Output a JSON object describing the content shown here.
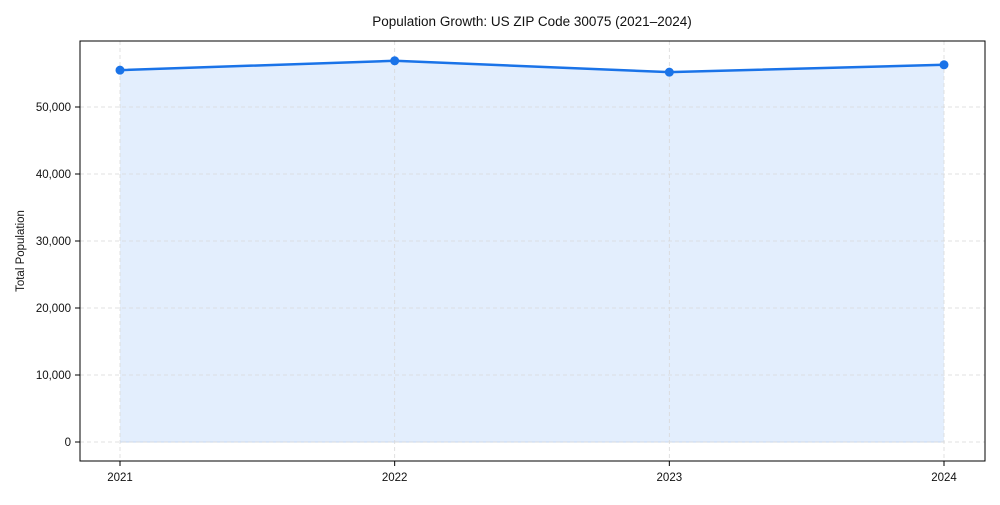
{
  "chart_data": {
    "type": "line",
    "title": "Population Growth: US ZIP Code 30075 (2021–2024)",
    "xlabel": "",
    "ylabel": "Total Population",
    "categories": [
      "2021",
      "2022",
      "2023",
      "2024"
    ],
    "series": [
      {
        "name": "Total Population",
        "values": [
          55500,
          56900,
          55200,
          56300
        ]
      }
    ],
    "ylim": [
      -3000,
      59500
    ],
    "yticks": [
      0,
      10000,
      20000,
      30000,
      40000,
      50000
    ],
    "ytick_labels": [
      "0",
      "10,000",
      "20,000",
      "30,000",
      "40,000",
      "50,000"
    ],
    "grid": true,
    "fill_under_line": true,
    "legend": null,
    "colors": {
      "line": "#1a73e8",
      "fill": "#e3eefd",
      "grid": "#d9d9d9",
      "axis": "#000000"
    }
  }
}
